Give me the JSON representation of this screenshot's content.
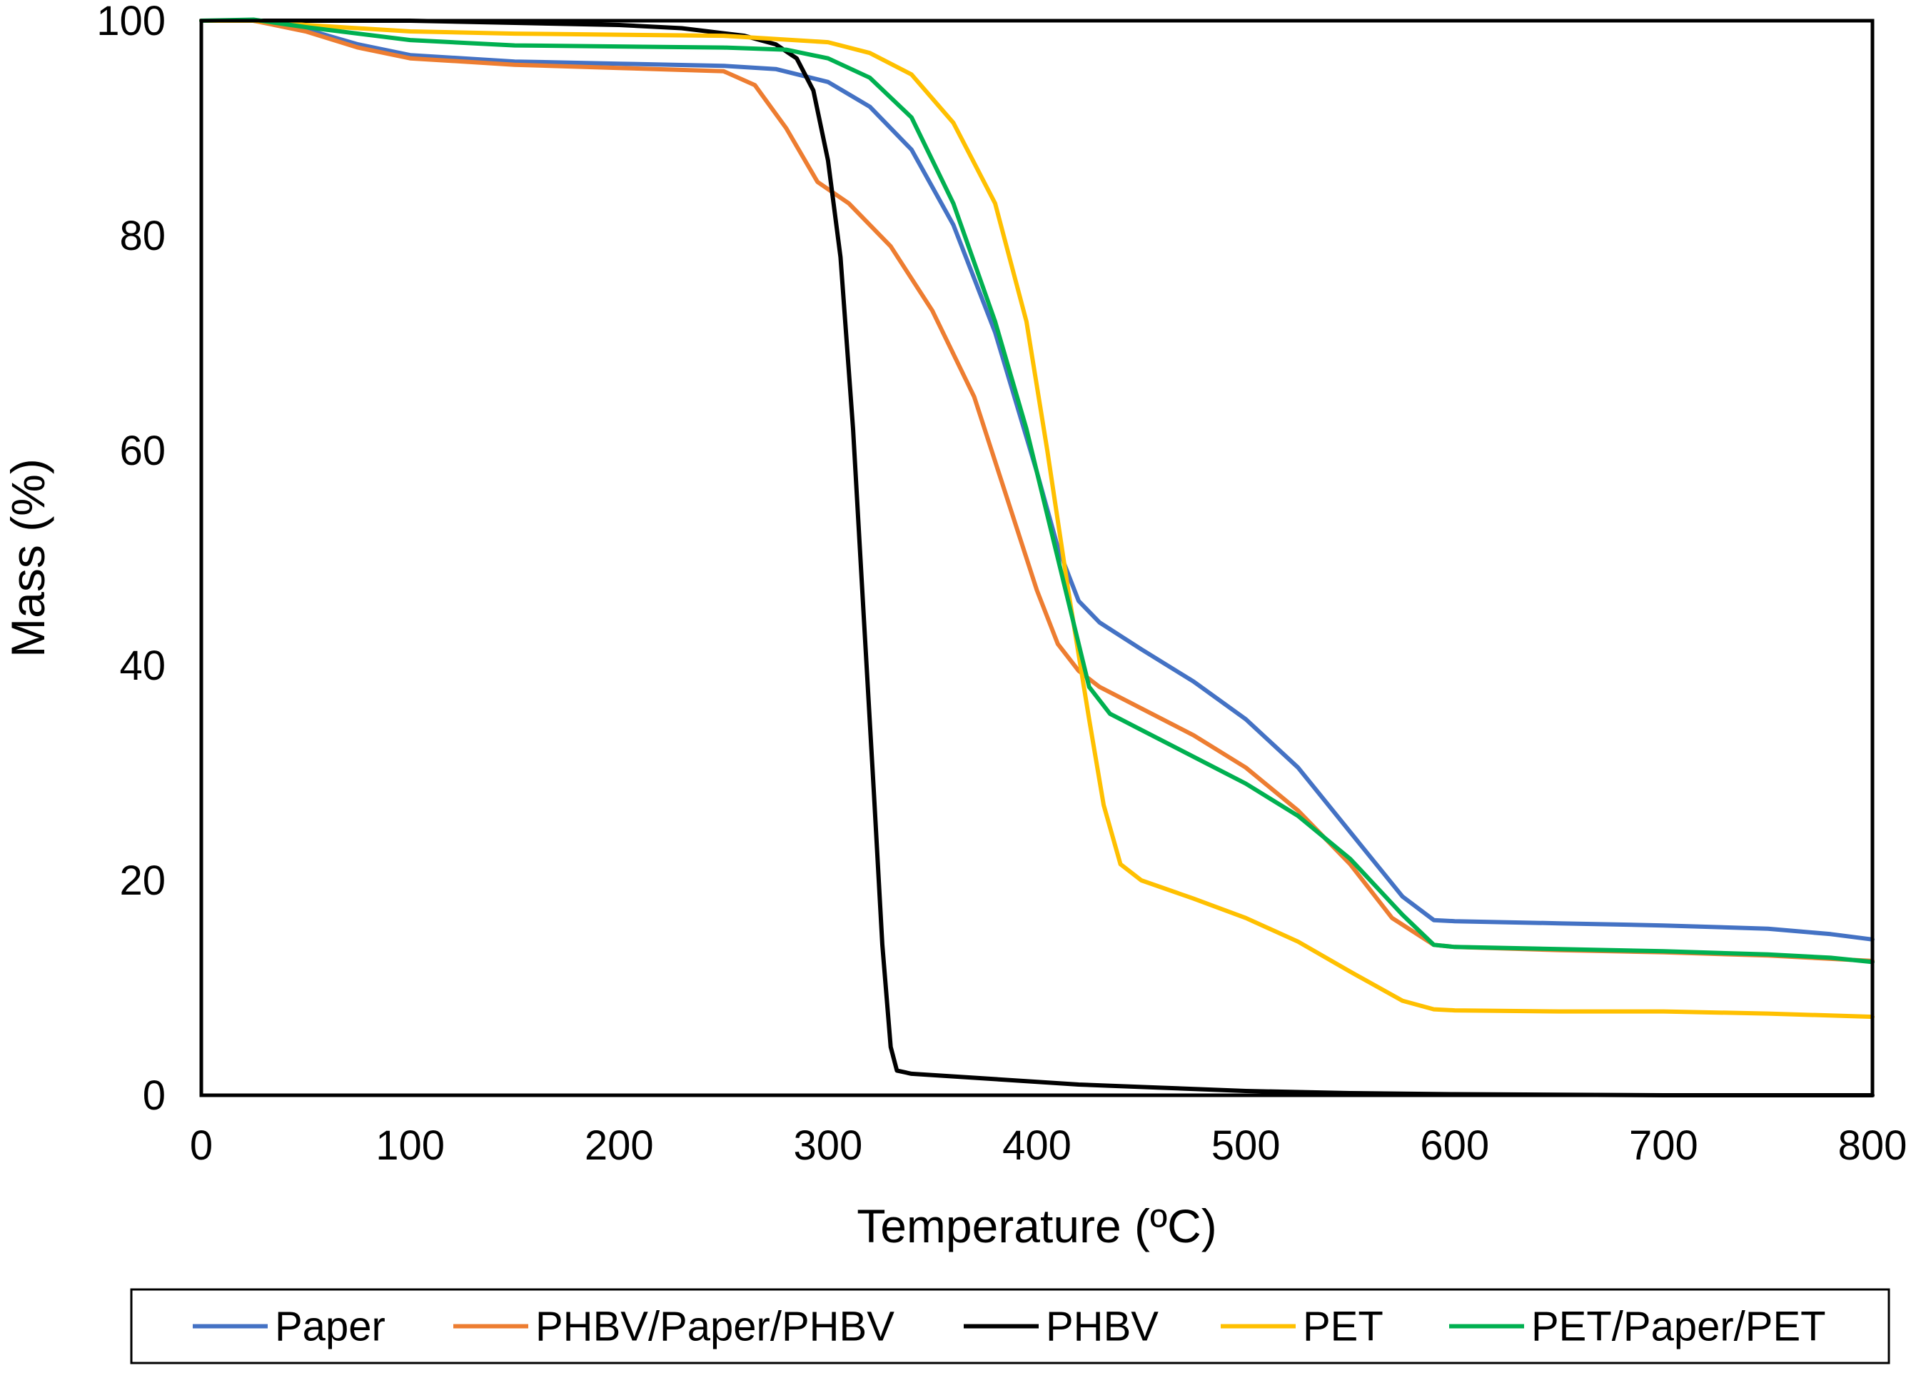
{
  "chart_data": {
    "type": "line",
    "title": "",
    "xlabel": "Temperature (ºC)",
    "ylabel": "Mass (%)",
    "xlim": [
      0,
      800
    ],
    "ylim": [
      0,
      100
    ],
    "x_ticks": [
      0,
      100,
      200,
      300,
      400,
      500,
      600,
      700,
      800
    ],
    "y_ticks": [
      0,
      20,
      40,
      60,
      80,
      100
    ],
    "grid": false,
    "legend_position": "bottom",
    "series": [
      {
        "name": "Paper",
        "color": "#4472C4",
        "points": [
          [
            0,
            100
          ],
          [
            25,
            100
          ],
          [
            50,
            99.2
          ],
          [
            75,
            97.8
          ],
          [
            100,
            96.8
          ],
          [
            150,
            96.2
          ],
          [
            200,
            96
          ],
          [
            250,
            95.8
          ],
          [
            275,
            95.5
          ],
          [
            300,
            94.3
          ],
          [
            320,
            92
          ],
          [
            340,
            88
          ],
          [
            360,
            81
          ],
          [
            380,
            71
          ],
          [
            400,
            58
          ],
          [
            410,
            51
          ],
          [
            420,
            46
          ],
          [
            430,
            44
          ],
          [
            450,
            41.5
          ],
          [
            475,
            38.5
          ],
          [
            500,
            35
          ],
          [
            525,
            30.5
          ],
          [
            550,
            24.5
          ],
          [
            575,
            18.5
          ],
          [
            590,
            16.3
          ],
          [
            600,
            16.2
          ],
          [
            650,
            16
          ],
          [
            700,
            15.8
          ],
          [
            750,
            15.5
          ],
          [
            780,
            15
          ],
          [
            800,
            14.5
          ]
        ]
      },
      {
        "name": "PHBV/Paper/PHBV",
        "color": "#ED7D31",
        "points": [
          [
            0,
            100
          ],
          [
            25,
            100
          ],
          [
            50,
            99
          ],
          [
            75,
            97.5
          ],
          [
            100,
            96.5
          ],
          [
            150,
            95.9
          ],
          [
            200,
            95.6
          ],
          [
            250,
            95.3
          ],
          [
            265,
            94
          ],
          [
            280,
            90
          ],
          [
            295,
            85
          ],
          [
            310,
            83
          ],
          [
            330,
            79
          ],
          [
            350,
            73
          ],
          [
            370,
            65
          ],
          [
            385,
            56
          ],
          [
            400,
            47
          ],
          [
            410,
            42
          ],
          [
            420,
            39.5
          ],
          [
            430,
            38
          ],
          [
            450,
            36
          ],
          [
            475,
            33.5
          ],
          [
            500,
            30.5
          ],
          [
            525,
            26.5
          ],
          [
            550,
            21.5
          ],
          [
            570,
            16.5
          ],
          [
            590,
            14
          ],
          [
            600,
            13.8
          ],
          [
            650,
            13.5
          ],
          [
            700,
            13.3
          ],
          [
            750,
            13
          ],
          [
            780,
            12.7
          ],
          [
            800,
            12.5
          ]
        ]
      },
      {
        "name": "PHBV",
        "color": "#000000",
        "points": [
          [
            0,
            100
          ],
          [
            50,
            100
          ],
          [
            100,
            100
          ],
          [
            150,
            99.8
          ],
          [
            200,
            99.6
          ],
          [
            230,
            99.3
          ],
          [
            260,
            98.6
          ],
          [
            275,
            97.8
          ],
          [
            285,
            96.5
          ],
          [
            293,
            93.5
          ],
          [
            300,
            87
          ],
          [
            306,
            78
          ],
          [
            312,
            62
          ],
          [
            317,
            45
          ],
          [
            322,
            28
          ],
          [
            326,
            14
          ],
          [
            330,
            4.5
          ],
          [
            333,
            2.3
          ],
          [
            340,
            2
          ],
          [
            380,
            1.5
          ],
          [
            420,
            1
          ],
          [
            460,
            0.7
          ],
          [
            500,
            0.4
          ],
          [
            550,
            0.2
          ],
          [
            600,
            0.1
          ],
          [
            700,
            0
          ],
          [
            800,
            0
          ]
        ]
      },
      {
        "name": "PET",
        "color": "#FFC000",
        "points": [
          [
            0,
            100
          ],
          [
            25,
            100
          ],
          [
            50,
            99.6
          ],
          [
            100,
            99
          ],
          [
            150,
            98.8
          ],
          [
            200,
            98.7
          ],
          [
            250,
            98.6
          ],
          [
            300,
            98
          ],
          [
            320,
            97
          ],
          [
            340,
            95
          ],
          [
            360,
            90.5
          ],
          [
            380,
            83
          ],
          [
            395,
            72
          ],
          [
            405,
            60
          ],
          [
            415,
            47
          ],
          [
            425,
            35
          ],
          [
            432,
            27
          ],
          [
            440,
            21.5
          ],
          [
            450,
            20
          ],
          [
            475,
            18.3
          ],
          [
            500,
            16.5
          ],
          [
            525,
            14.3
          ],
          [
            550,
            11.5
          ],
          [
            575,
            8.8
          ],
          [
            590,
            8
          ],
          [
            600,
            7.9
          ],
          [
            650,
            7.8
          ],
          [
            700,
            7.8
          ],
          [
            750,
            7.6
          ],
          [
            800,
            7.3
          ]
        ]
      },
      {
        "name": "PET/Paper/PET",
        "color": "#00B050",
        "points": [
          [
            0,
            100
          ],
          [
            25,
            100.1
          ],
          [
            50,
            99.4
          ],
          [
            100,
            98.2
          ],
          [
            150,
            97.7
          ],
          [
            200,
            97.6
          ],
          [
            250,
            97.5
          ],
          [
            280,
            97.3
          ],
          [
            300,
            96.5
          ],
          [
            320,
            94.7
          ],
          [
            340,
            91
          ],
          [
            360,
            83
          ],
          [
            380,
            72
          ],
          [
            395,
            62
          ],
          [
            405,
            54
          ],
          [
            415,
            46
          ],
          [
            425,
            38
          ],
          [
            435,
            35.5
          ],
          [
            450,
            34
          ],
          [
            475,
            31.5
          ],
          [
            500,
            29
          ],
          [
            525,
            26
          ],
          [
            550,
            22
          ],
          [
            575,
            16.8
          ],
          [
            590,
            14
          ],
          [
            600,
            13.8
          ],
          [
            650,
            13.6
          ],
          [
            700,
            13.4
          ],
          [
            750,
            13.1
          ],
          [
            780,
            12.8
          ],
          [
            800,
            12.4
          ]
        ]
      }
    ]
  }
}
